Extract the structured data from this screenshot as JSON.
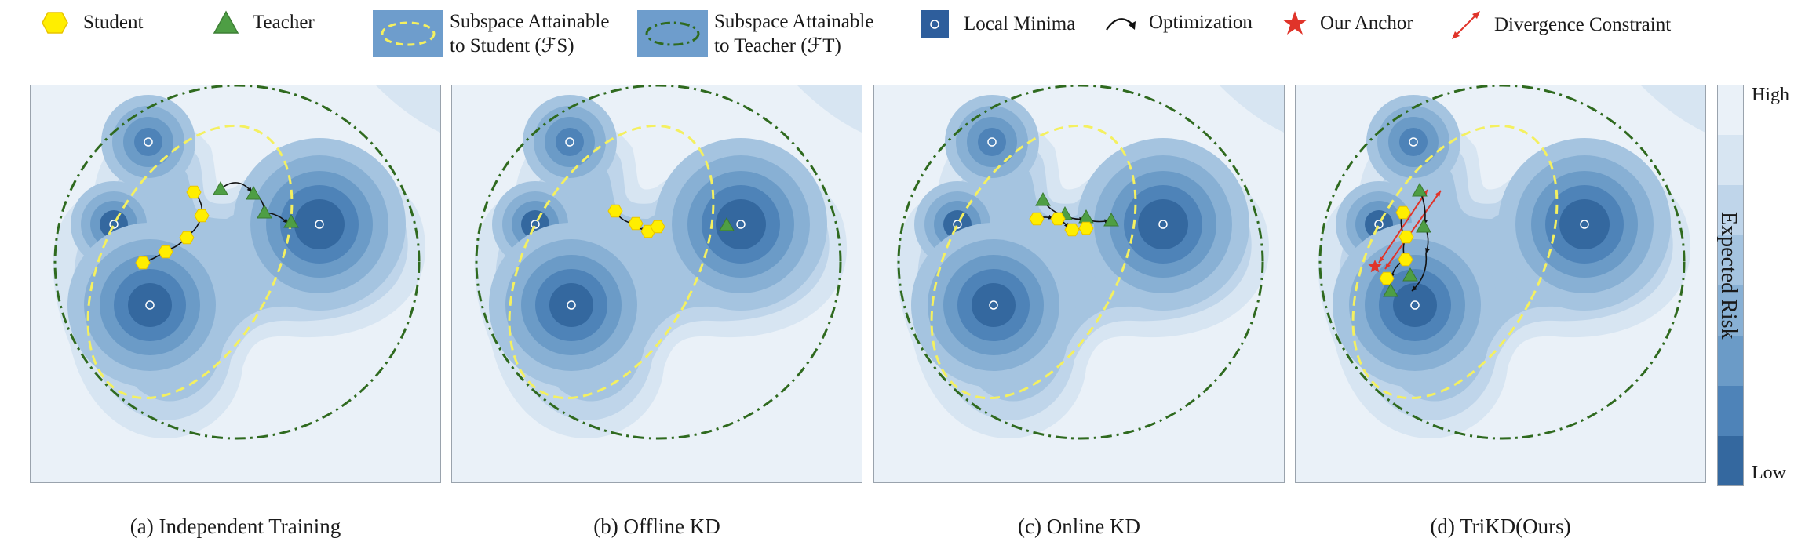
{
  "legend": {
    "student": "Student",
    "teacher": "Teacher",
    "subspace_student_line1": "Subspace Attainable",
    "subspace_student_line2": "to Student (ℱS)",
    "subspace_teacher_line1": "Subspace Attainable",
    "subspace_teacher_line2": "to Teacher (ℱT)",
    "local_minima": "Local Minima",
    "optimization": "Optimization",
    "anchor": "Our Anchor",
    "divergence": "Divergence Constraint"
  },
  "panels": [
    {
      "caption": "(a) Independent Training"
    },
    {
      "caption": "(b) Offline KD"
    },
    {
      "caption": "(c) Online KD"
    },
    {
      "caption": "(d) TriKD(Ours)"
    }
  ],
  "colorbar": {
    "high": "High",
    "low": "Low",
    "title": "Expected Risk"
  },
  "colors": {
    "student": "#ffee00",
    "teacher": "#4e9e44",
    "subspace_student": "#f4f060",
    "subspace_teacher": "#2f6a1f",
    "anchor": "#e0342a",
    "levels": [
      "#eaf1f8",
      "#d7e5f2",
      "#bfd5ea",
      "#a5c4e0",
      "#88b0d4",
      "#6b9bc7",
      "#4e83b8",
      "#34689f",
      "#1f4f87"
    ]
  }
}
